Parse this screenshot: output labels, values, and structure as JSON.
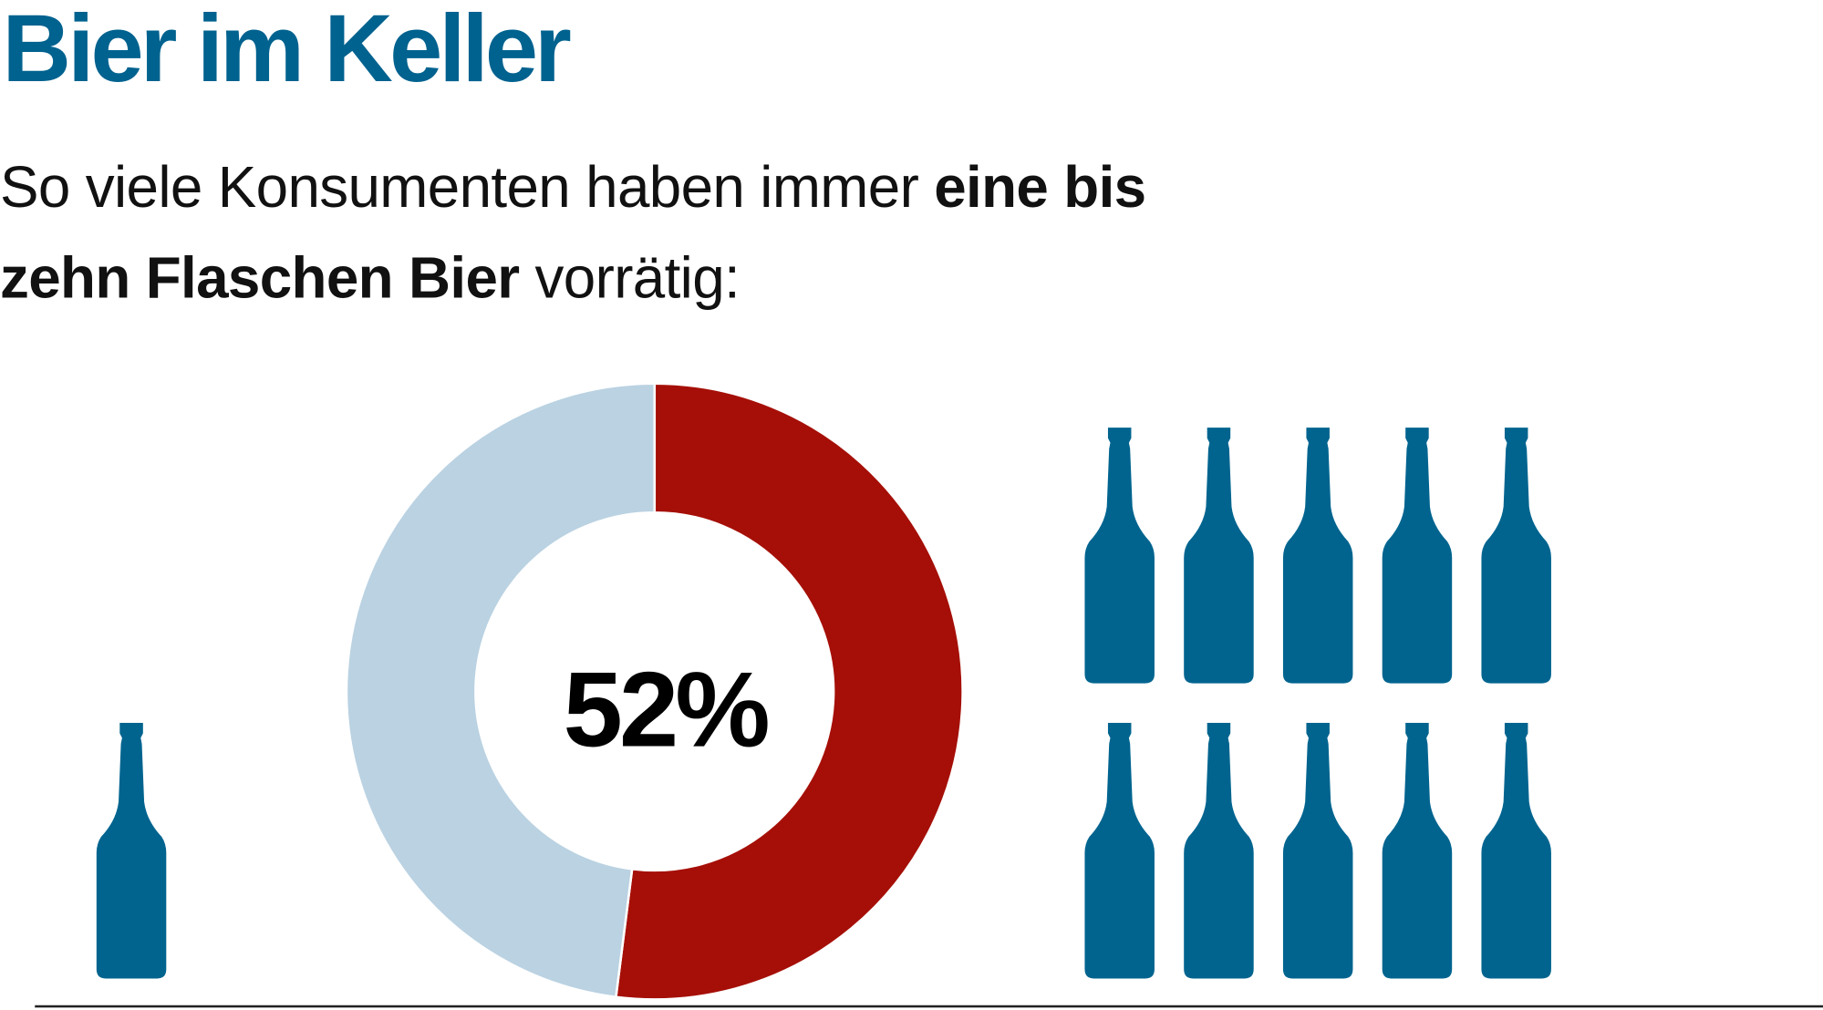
{
  "title": "Bier im Keller",
  "subtitle": {
    "line1": {
      "normal": "So viele Konsumenten haben immer ",
      "bold": "eine bis"
    },
    "line2": {
      "bold": "zehn Flaschen Bier",
      "normal": " vorrätig:"
    }
  },
  "chart_data": {
    "type": "pie",
    "variant": "donut",
    "center_label": "52%",
    "values": [
      52,
      48
    ],
    "colors": [
      "#a50f07",
      "#bad2e2"
    ],
    "icon_legend": {
      "left_bottle_count": 1,
      "right_bottle_count": 10,
      "icon": "beer-bottle-icon",
      "color": "#00648f"
    }
  },
  "colors": {
    "title": "#00628f",
    "highlight": "#a50f07",
    "remainder": "#bad2e2",
    "bottle": "#00648f"
  }
}
